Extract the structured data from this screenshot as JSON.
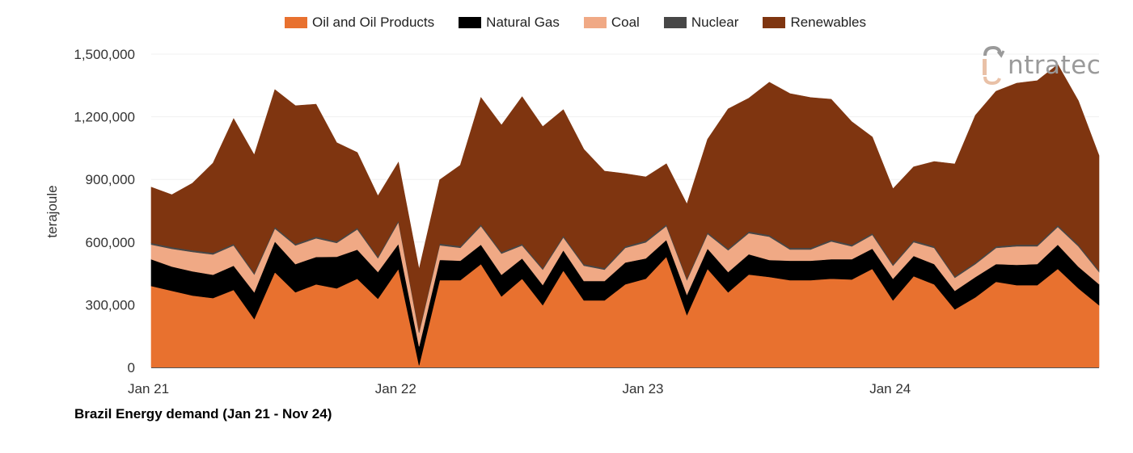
{
  "chart_data": {
    "type": "area",
    "stacked": true,
    "title": "Brazil Energy demand (Jan 21 - Nov 24)",
    "xlabel": "",
    "ylabel": "terajoule",
    "ylim": [
      0,
      1500000
    ],
    "yticks": [
      0,
      300000,
      600000,
      900000,
      1200000,
      1500000
    ],
    "ytick_labels": [
      "0",
      "300,000",
      "600,000",
      "900,000",
      "1,200,000",
      "1,500,000"
    ],
    "xtick_labels": [
      {
        "label": "Jan 21",
        "month": "2021-01"
      },
      {
        "label": "Jan 22",
        "month": "2022-01"
      },
      {
        "label": "Jan 23",
        "month": "2023-01"
      },
      {
        "label": "Jan 24",
        "month": "2024-01"
      }
    ],
    "x": [
      "2021-01",
      "2021-02",
      "2021-03",
      "2021-04",
      "2021-05",
      "2021-06",
      "2021-07",
      "2021-08",
      "2021-09",
      "2021-10",
      "2021-11",
      "2021-12",
      "2022-01",
      "2022-02",
      "2022-03",
      "2022-04",
      "2022-05",
      "2022-06",
      "2022-07",
      "2022-08",
      "2022-09",
      "2022-10",
      "2022-11",
      "2022-12",
      "2023-01",
      "2023-02",
      "2023-03",
      "2023-04",
      "2023-05",
      "2023-06",
      "2023-07",
      "2023-08",
      "2023-09",
      "2023-10",
      "2023-11",
      "2023-12",
      "2024-01",
      "2024-02",
      "2024-03",
      "2024-04",
      "2024-05",
      "2024-06",
      "2024-07",
      "2024-08",
      "2024-09",
      "2024-10",
      "2024-11"
    ],
    "grid": true,
    "legend_position": "top",
    "series": [
      {
        "name": "Oil and Oil Products",
        "color": "#E8712F",
        "values": [
          390000,
          367000,
          344000,
          332000,
          371000,
          232000,
          456000,
          360000,
          398000,
          379000,
          425000,
          329000,
          472000,
          10000,
          418000,
          418000,
          495000,
          340000,
          425000,
          298000,
          464000,
          321000,
          321000,
          398000,
          425000,
          530000,
          251000,
          472000,
          360000,
          445000,
          433000,
          418000,
          418000,
          425000,
          421000,
          472000,
          321000,
          437000,
          398000,
          278000,
          336000,
          410000,
          394000,
          394000,
          472000,
          379000,
          298000
        ]
      },
      {
        "name": "Natural Gas",
        "color": "#000000",
        "values": [
          128000,
          116000,
          116000,
          112000,
          116000,
          128000,
          147000,
          135000,
          131000,
          151000,
          139000,
          128000,
          120000,
          90000,
          97000,
          93000,
          93000,
          104000,
          97000,
          97000,
          97000,
          93000,
          93000,
          104000,
          97000,
          81000,
          97000,
          97000,
          97000,
          97000,
          81000,
          93000,
          93000,
          93000,
          97000,
          97000,
          104000,
          97000,
          97000,
          89000,
          97000,
          85000,
          97000,
          101000,
          116000,
          104000,
          101000
        ]
      },
      {
        "name": "Coal",
        "color": "#F0A985",
        "values": [
          70000,
          85000,
          93000,
          97000,
          97000,
          85000,
          62000,
          89000,
          89000,
          66000,
          97000,
          66000,
          104000,
          66000,
          70000,
          62000,
          89000,
          101000,
          62000,
          73000,
          62000,
          73000,
          54000,
          70000,
          77000,
          66000,
          70000,
          70000,
          104000,
          101000,
          112000,
          54000,
          54000,
          85000,
          62000,
          66000,
          62000,
          66000,
          77000,
          62000,
          62000,
          77000,
          89000,
          85000,
          85000,
          97000,
          58000
        ]
      },
      {
        "name": "Nuclear",
        "color": "#474747",
        "values": [
          8000,
          8000,
          8000,
          8000,
          8000,
          8000,
          8000,
          8000,
          8000,
          8000,
          8000,
          8000,
          8000,
          8000,
          8000,
          8000,
          8000,
          8000,
          8000,
          8000,
          8000,
          8000,
          8000,
          8000,
          8000,
          8000,
          8000,
          8000,
          8000,
          8000,
          8000,
          8000,
          8000,
          8000,
          8000,
          8000,
          8000,
          8000,
          8000,
          8000,
          8000,
          8000,
          8000,
          8000,
          8000,
          8000,
          8000
        ]
      },
      {
        "name": "Renewables",
        "color": "#7F3510",
        "values": [
          267000,
          251000,
          321000,
          429000,
          599000,
          564000,
          657000,
          661000,
          634000,
          472000,
          360000,
          290000,
          278000,
          296000,
          305000,
          387000,
          607000,
          607000,
          704000,
          677000,
          603000,
          549000,
          464000,
          348000,
          305000,
          290000,
          356000,
          445000,
          669000,
          638000,
          731000,
          738000,
          719000,
          673000,
          588000,
          460000,
          360000,
          352000,
          406000,
          537000,
          704000,
          742000,
          773000,
          785000,
          769000,
          688000,
          549000
        ]
      }
    ]
  },
  "logo": {
    "text": "intratec"
  }
}
